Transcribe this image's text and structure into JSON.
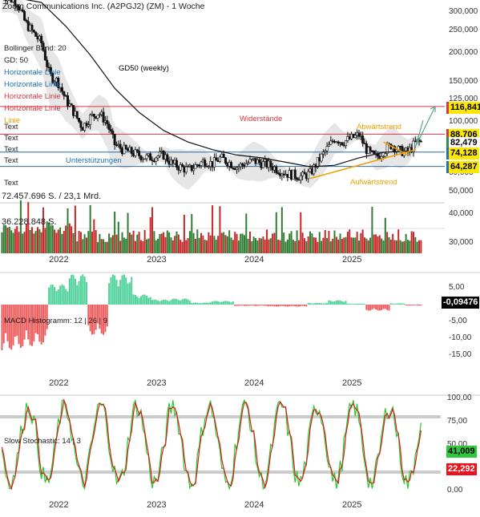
{
  "header": {
    "title": "Zoom Communications Inc. (A2PGJ2) (ZM) - 1 Woche"
  },
  "legend": {
    "items": [
      {
        "text": "Bollinger Band: 20",
        "color": "#222222"
      },
      {
        "text": "GD: 50",
        "color": "#222222"
      },
      {
        "text": "Horizontale Linie",
        "color": "#1f6fb5"
      },
      {
        "text": "Horizontale Linie",
        "color": "#1f6fb5"
      },
      {
        "text": "Horizontale Linie",
        "color": "#d9363e"
      },
      {
        "text": "Horizontale Linie",
        "color": "#d9363e"
      },
      {
        "text": "Linie",
        "color": "#f0a000"
      },
      {
        "text": "Text",
        "color": "#222222"
      },
      {
        "text": "Text",
        "color": "#222222"
      },
      {
        "text": "Text",
        "color": "#222222"
      },
      {
        "text": "Text",
        "color": "#222222"
      },
      {
        "text": "Text",
        "color": "#222222"
      }
    ]
  },
  "annotations": {
    "gd50": "GD50 (weekly)",
    "resistance": "Widerstände",
    "support": "Unterstützungen",
    "downtrend": "Abwärtstrend",
    "uptrend": "Aufwärtstrend"
  },
  "volume": {
    "summary": "72.457.696 S. / 23,1 Mrd.",
    "avg": "36.228.848 S."
  },
  "panels": {
    "macd_label": "MACD Histogramm: 12 | 26 | 9",
    "stoch_label": "Slow Stochastic: 14 | 3"
  },
  "price_tags": [
    {
      "text": "116,841",
      "bg": "#ffe800",
      "fg": "#000000",
      "border": "#d9363e"
    },
    {
      "text": "88,706",
      "bg": "#ffe800",
      "fg": "#000000",
      "border": "#d9363e"
    },
    {
      "text": "82,479",
      "bg": "#ffffff",
      "fg": "#000000",
      "border": "#2e8b57"
    },
    {
      "text": "74,128",
      "bg": "#ffe800",
      "fg": "#000000",
      "border": "#1f6fb5"
    },
    {
      "text": "64,287",
      "bg": "#ffe800",
      "fg": "#000000",
      "border": "#1f6fb5"
    }
  ],
  "macd_tag": {
    "text": "-0,09476",
    "bg": "#000000",
    "fg": "#ffffff"
  },
  "stoch_tags": [
    {
      "text": "41,009",
      "bg": "#2ec83a",
      "fg": "#000000"
    },
    {
      "text": "22,292",
      "bg": "#e8141e",
      "fg": "#ffffff"
    }
  ],
  "colors": {
    "up": "#2e7d32",
    "down": "#c62828",
    "macd_pos": "#4fd19a",
    "macd_neg": "#f05c5c",
    "resistance": "#d9363e",
    "support": "#1f6fb5",
    "trend": "#f0a000",
    "band": "#e6e6e6",
    "stoch_k": "#27c92f",
    "stoch_d": "#d51b1b"
  },
  "chart_data": [
    {
      "type": "candlestick",
      "title": "Zoom Communications Inc. (A2PGJ2) (ZM) - 1 Woche",
      "y_scale": "log",
      "y_ticks": [
        "300,000",
        "250,000",
        "200,000",
        "150,000",
        "125,000",
        "100,000",
        "80,000",
        "60,000",
        "50,000"
      ],
      "y_tick_values": [
        300,
        250,
        200,
        150,
        125,
        100,
        80,
        60,
        50
      ],
      "x_ticks": [
        "2022",
        "2023",
        "2024",
        "2025"
      ],
      "price_path": [
        [
          "2021-06",
          360
        ],
        [
          "2021-08",
          330
        ],
        [
          "2021-09",
          270
        ],
        [
          "2021-11",
          220
        ],
        [
          "2021-12",
          160
        ],
        [
          "2022-01",
          150
        ],
        [
          "2022-02",
          125
        ],
        [
          "2022-03",
          110
        ],
        [
          "2022-04",
          95
        ],
        [
          "2022-05",
          105
        ],
        [
          "2022-06",
          110
        ],
        [
          "2022-07",
          100
        ],
        [
          "2022-08",
          80
        ],
        [
          "2022-09",
          76
        ],
        [
          "2022-10",
          74
        ],
        [
          "2022-12",
          70
        ],
        [
          "2023-02",
          72
        ],
        [
          "2023-03",
          66
        ],
        [
          "2023-05",
          62
        ],
        [
          "2023-07",
          68
        ],
        [
          "2023-08",
          66
        ],
        [
          "2023-09",
          70
        ],
        [
          "2023-11",
          64
        ],
        [
          "2024-01",
          68
        ],
        [
          "2024-03",
          65
        ],
        [
          "2024-05",
          60
        ],
        [
          "2024-07",
          58
        ],
        [
          "2024-08",
          60
        ],
        [
          "2024-09",
          68
        ],
        [
          "2024-11",
          85
        ],
        [
          "2024-12",
          82
        ],
        [
          "2025-02",
          88
        ],
        [
          "2025-03",
          75
        ],
        [
          "2025-04",
          70
        ],
        [
          "2025-06",
          80
        ],
        [
          "2025-07",
          75
        ],
        [
          "2025-08",
          74
        ],
        [
          "2025-09",
          82
        ]
      ],
      "moving_average": {
        "name": "GD50 (weekly)",
        "values": [
          [
            "2021-08",
            345
          ],
          [
            "2021-11",
            330
          ],
          [
            "2022-02",
            260
          ],
          [
            "2022-05",
            195
          ],
          [
            "2022-08",
            140
          ],
          [
            "2022-11",
            110
          ],
          [
            "2023-02",
            92
          ],
          [
            "2023-05",
            82
          ],
          [
            "2023-08",
            76
          ],
          [
            "2023-11",
            72
          ],
          [
            "2024-02",
            70
          ],
          [
            "2024-05",
            67
          ],
          [
            "2024-08",
            64
          ],
          [
            "2024-11",
            65
          ],
          [
            "2025-02",
            70
          ],
          [
            "2025-05",
            74
          ],
          [
            "2025-08",
            75
          ]
        ]
      },
      "horizontal_lines": [
        {
          "value": 116.841,
          "color": "#d9363e"
        },
        {
          "value": 88.706,
          "color": "#d9363e"
        },
        {
          "value": 74.128,
          "color": "#1f6fb5"
        },
        {
          "value": 64.287,
          "color": "#1f6fb5"
        }
      ],
      "trendlines": [
        {
          "name": "Aufwärtstrend",
          "from": [
            "2024-08",
            57
          ],
          "to": [
            "2025-09",
            76
          ]
        },
        {
          "name": "Abwärtstrend",
          "from": [
            "2025-05",
            82
          ],
          "to": [
            "2025-08",
            72
          ]
        }
      ]
    },
    {
      "type": "bar",
      "name": "Volume",
      "y_ticks": [
        "40,000",
        "30,000"
      ],
      "y_tick_values": [
        40,
        30
      ]
    },
    {
      "type": "bar",
      "name": "MACD Histogramm: 12 | 26 | 9",
      "y_ticks": [
        "5,00",
        "-5,00",
        "-10,00",
        "-15,00"
      ],
      "y_tick_values": [
        5,
        -5,
        -10,
        -15
      ],
      "x_ticks": [
        "2022",
        "2023",
        "2024",
        "2025"
      ],
      "last_value": -0.09476
    },
    {
      "type": "line",
      "name": "Slow Stochastic: 14 | 3",
      "y_ticks": [
        "100,00",
        "75,00",
        "50,00",
        "25,00",
        "0,00"
      ],
      "y_tick_values": [
        100,
        75,
        50,
        25,
        0
      ],
      "x_ticks": [
        "2022",
        "2023",
        "2024",
        "2025"
      ],
      "series": [
        {
          "name": "%K",
          "last": 41.009
        },
        {
          "name": "%D",
          "last": 22.292
        }
      ],
      "reference_lines": [
        80,
        20
      ]
    }
  ]
}
